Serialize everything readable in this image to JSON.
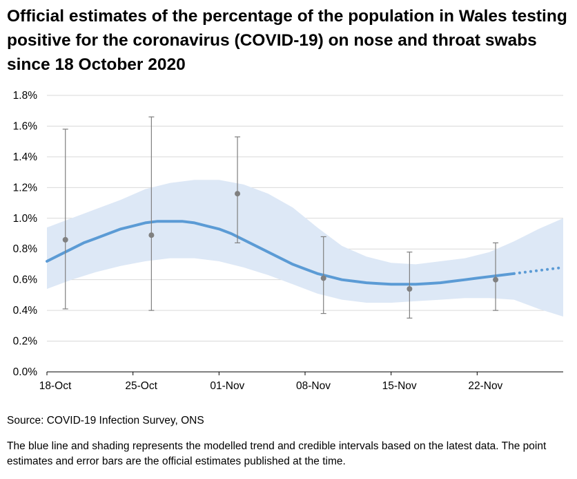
{
  "title": "Official estimates of the percentage of the population in Wales testing positive for the coronavirus (COVID-19) on nose and throat swabs since 18 October 2020",
  "source": "Source: COVID-19 Infection Survey, ONS",
  "note": "The blue line and shading represents the modelled trend and credible intervals based on the latest data. The point estimates and error bars are the official estimates published at the time.",
  "chart_data": {
    "type": "line",
    "title": "Official estimates of the percentage of the population in Wales testing positive for the coronavirus (COVID-19) on nose and throat swabs since 18 October 2020",
    "xlabel": "",
    "ylabel": "",
    "x_range_days": [
      0,
      42
    ],
    "ylim": [
      0,
      1.8
    ],
    "y_ticks": [
      0,
      0.2,
      0.4,
      0.6,
      0.8,
      1.0,
      1.2,
      1.4,
      1.6,
      1.8
    ],
    "y_tick_labels": [
      "0.0%",
      "0.2%",
      "0.4%",
      "0.6%",
      "0.8%",
      "1.0%",
      "1.2%",
      "1.4%",
      "1.6%",
      "1.8%"
    ],
    "x_ticks_days": [
      0,
      7,
      14,
      21,
      28,
      35
    ],
    "x_tick_labels": [
      "18-Oct",
      "25-Oct",
      "01-Nov",
      "08-Nov",
      "15-Nov",
      "22-Nov"
    ],
    "grid": true,
    "trend": {
      "name": "Modelled trend",
      "color": "#5b9bd5",
      "days": [
        0,
        1,
        2,
        3,
        4,
        5,
        6,
        7,
        8,
        9,
        10,
        11,
        12,
        13,
        14,
        15,
        16,
        17,
        18,
        19,
        20,
        21,
        22,
        23,
        24,
        25,
        26,
        27,
        28,
        29,
        30,
        31,
        32,
        33,
        34,
        35,
        36,
        37,
        38
      ],
      "values": [
        0.72,
        0.76,
        0.8,
        0.84,
        0.87,
        0.9,
        0.93,
        0.95,
        0.97,
        0.98,
        0.98,
        0.98,
        0.97,
        0.95,
        0.93,
        0.9,
        0.86,
        0.82,
        0.78,
        0.74,
        0.7,
        0.67,
        0.64,
        0.62,
        0.6,
        0.59,
        0.58,
        0.575,
        0.57,
        0.57,
        0.57,
        0.575,
        0.58,
        0.59,
        0.6,
        0.61,
        0.62,
        0.63,
        0.64
      ],
      "solid_until_day": 38.0,
      "dotted_from_day": 38.0,
      "dotted_until_day": 42.0
    },
    "credible_interval": {
      "name": "Credible interval",
      "color": "#dde8f6",
      "days": [
        0,
        2,
        4,
        6,
        8,
        10,
        12,
        14,
        16,
        18,
        20,
        22,
        24,
        26,
        28,
        30,
        32,
        34,
        36,
        38,
        40,
        42
      ],
      "lower": [
        0.54,
        0.6,
        0.65,
        0.69,
        0.72,
        0.74,
        0.74,
        0.72,
        0.68,
        0.63,
        0.57,
        0.51,
        0.47,
        0.45,
        0.45,
        0.46,
        0.47,
        0.48,
        0.48,
        0.47,
        0.41,
        0.36
      ],
      "upper": [
        0.94,
        1.0,
        1.06,
        1.12,
        1.19,
        1.23,
        1.25,
        1.25,
        1.22,
        1.16,
        1.07,
        0.94,
        0.82,
        0.75,
        0.71,
        0.7,
        0.72,
        0.74,
        0.78,
        0.85,
        0.93,
        1.0
      ]
    },
    "point_estimates": {
      "name": "Official estimates",
      "color": "#808080",
      "days": [
        1.5,
        8.5,
        15.5,
        22.5,
        29.5,
        36.5
      ],
      "values": [
        0.86,
        0.89,
        1.16,
        0.61,
        0.54,
        0.6
      ],
      "lower": [
        0.41,
        0.4,
        0.84,
        0.38,
        0.35,
        0.4
      ],
      "upper": [
        1.58,
        1.66,
        1.53,
        0.88,
        0.78,
        0.84
      ]
    }
  }
}
